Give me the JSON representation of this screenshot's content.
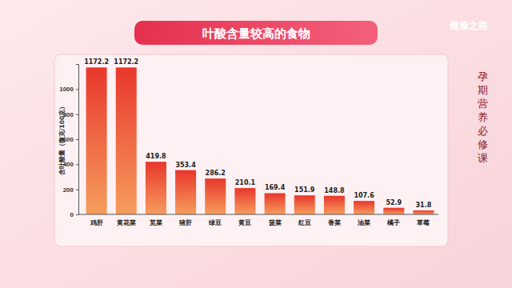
{
  "chart_data": {
    "type": "bar",
    "title": "叶酸含量较高的食物",
    "y_label": "含叶酸量（微克/100克）",
    "annotations": [
      "健康之路",
      "孕期营养必修课"
    ],
    "categories": [
      "鸡肝",
      "黄花菜",
      "苋菜",
      "猪肝",
      "绿豆",
      "黄豆",
      "菠菜",
      "红豆",
      "香菜",
      "油菜",
      "橘子",
      "草莓"
    ],
    "values": [
      1172.2,
      1172.2,
      419.8,
      353.4,
      286.2,
      210.1,
      169.4,
      151.9,
      148.8,
      107.6,
      52.9,
      31.8
    ],
    "color": "#e8372c",
    "ylim": [
      0,
      1200
    ],
    "yticks": [
      0,
      200,
      400,
      600,
      800,
      1000
    ],
    "grid": false,
    "data_labels": true
  }
}
